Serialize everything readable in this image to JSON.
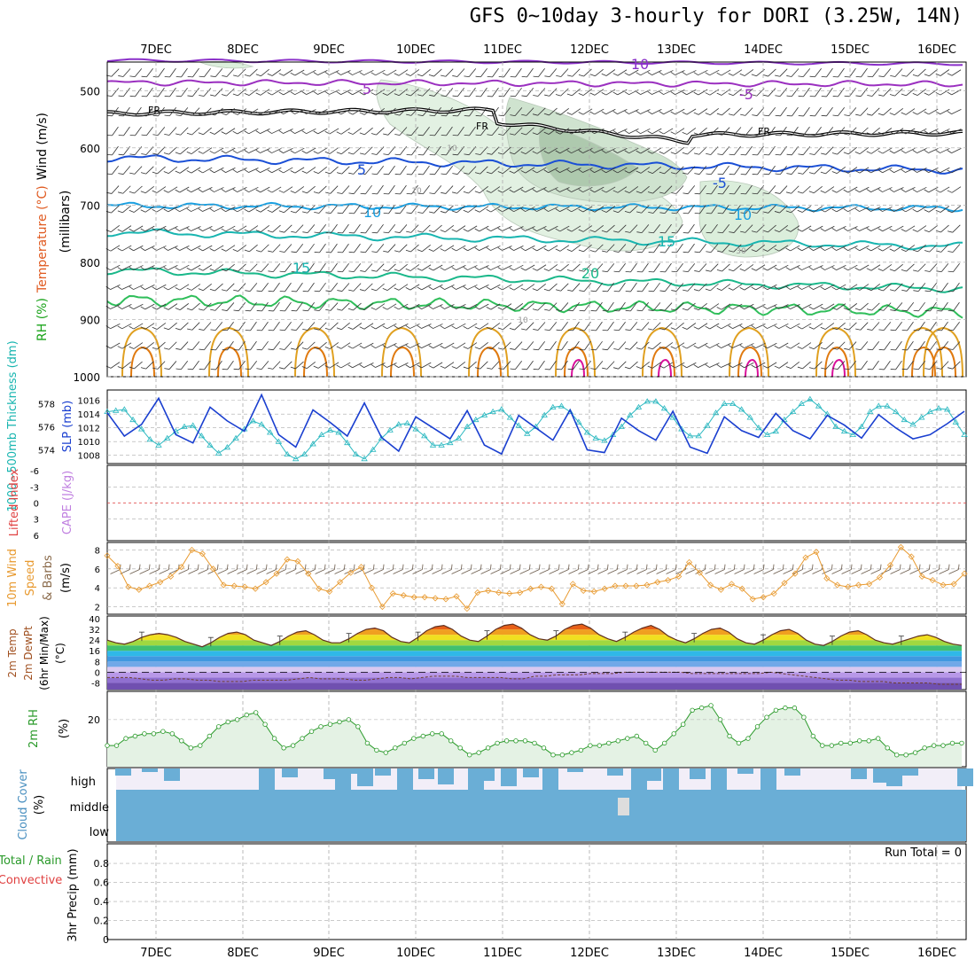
{
  "title": "GFS 0~10day 3-hourly for DORI (3.25W, 14N)",
  "x_axis": {
    "date_labels": [
      "7DEC",
      "8DEC",
      "9DEC",
      "10DEC",
      "11DEC",
      "12DEC",
      "13DEC",
      "14DEC",
      "15DEC",
      "16DEC"
    ]
  },
  "panels": {
    "upper": {
      "ylabel_parts": [
        "RH (%)",
        "Temperature (°C)",
        "Wind (m/s)",
        "(millibars)"
      ],
      "yticks": [
        500,
        600,
        700,
        800,
        900,
        1000
      ],
      "contour_labels": [
        "10",
        "5",
        "-5",
        "FR",
        "FR",
        "FR",
        "5",
        "-5",
        "10",
        "10",
        "15",
        "15",
        "20"
      ],
      "rh_labels": [
        "10",
        "10",
        "30",
        "10"
      ],
      "colors": {
        "t_minus10": "#8a2fc9",
        "t_minus5": "#9b30c0",
        "fr": "#000000",
        "t5": "#1a4fd6",
        "t10": "#1a9fe0",
        "t15": "#18b5b0",
        "t20": "#1ab88a",
        "t25": "#2fbe5a",
        "t30": "#e0a020",
        "t35": "#e07a10",
        "t40": "#d8109a",
        "rh": "#cfe9cf"
      }
    },
    "pressure": {
      "ylabel_left": "1000~500mb Thickness (dm)",
      "ylabel_right": "SLP (mb)",
      "left_ticks": [
        "578",
        "576",
        "574"
      ],
      "right_ticks": [
        "1016",
        "1014",
        "1012",
        "1010",
        "1008"
      ]
    },
    "stability": {
      "ylabel_left": "Lifted Index",
      "ylabel_right": "CAPE (J/kg)",
      "ticks": [
        "-6",
        "-3",
        "0",
        "3",
        "6"
      ]
    },
    "wind10": {
      "ylabel": [
        "10m Wind",
        "Speed",
        "& Barbs",
        "(m/s)"
      ],
      "ticks": [
        "8",
        "6",
        "4",
        "2"
      ]
    },
    "temp2m": {
      "ylabel": [
        "2m Temp",
        "2m DewPt",
        "(6hr Min/Max)",
        "(°C)"
      ],
      "ticks": [
        "40",
        "32",
        "24",
        "16",
        "8",
        "0",
        "-8"
      ]
    },
    "rh2m": {
      "ylabel": [
        "2m RH",
        "(%)"
      ],
      "ticks": [
        "20"
      ]
    },
    "cloud": {
      "ylabel": [
        "Cloud Cover",
        "(%)"
      ],
      "level_labels": [
        "high",
        "middle",
        "low"
      ],
      "color": "#6aaed6"
    },
    "precip": {
      "ylabel": [
        "Total / Rain",
        "Convective",
        "3hr Precip (mm)"
      ],
      "ticks": [
        "0.8",
        "0.6",
        "0.4",
        "0.2",
        "0"
      ],
      "run_total": "Run Total = 0"
    }
  },
  "chart_data": {
    "type": "line",
    "x_dates": [
      "7DEC",
      "8DEC",
      "9DEC",
      "10DEC",
      "11DEC",
      "12DEC",
      "13DEC",
      "14DEC",
      "15DEC",
      "16DEC"
    ],
    "slp_mb": [
      1014.2,
      1010.8,
      1012.5,
      1016.3,
      1011.0,
      1009.8,
      1015.0,
      1013.0,
      1011.5,
      1016.8,
      1011.0,
      1009.2,
      1014.6,
      1012.8,
      1010.8,
      1015.6,
      1010.6,
      1008.6,
      1013.6,
      1012.0,
      1010.4,
      1014.5,
      1009.5,
      1008.2,
      1013.8,
      1012.0,
      1010.2,
      1014.6,
      1008.8,
      1008.4,
      1013.4,
      1011.6,
      1010.2,
      1014.4,
      1009.2,
      1008.3,
      1013.6,
      1011.6,
      1010.6,
      1014.1,
      1011.6,
      1010.4,
      1013.8,
      1012.4,
      1010.5,
      1013.9,
      1012.0,
      1010.4,
      1011.0,
      1012.6,
      1014.4
    ],
    "thickness_dm": [
      577.3,
      577.4,
      577.5,
      576.6,
      575.8,
      574.9,
      574.4,
      575.0,
      575.6,
      576.0,
      576.1,
      575.2,
      574.4,
      573.7,
      574.2,
      575.0,
      575.8,
      576.5,
      576.2,
      575.5,
      574.7,
      573.6,
      573.2,
      573.6,
      574.5,
      575.3,
      575.7,
      575.5,
      574.6,
      573.6,
      573.2,
      574.0,
      575.0,
      575.7,
      576.2,
      576.3,
      575.8,
      575.2,
      574.4,
      574.4,
      574.6,
      575.0,
      576.0,
      576.6,
      577.0,
      577.3,
      577.5,
      576.8,
      576.1,
      575.4,
      576.0,
      577.0,
      577.7,
      577.8,
      577.3,
      576.4,
      575.5,
      575.0,
      574.8,
      575.3,
      576.0,
      577.0,
      577.7,
      578.2,
      578.2,
      577.6,
      576.8,
      575.8,
      575.2,
      575.2,
      576.1,
      577.2,
      578.0,
      578.0,
      577.5,
      576.8,
      575.9,
      575.3,
      575.6,
      576.6,
      577.3,
      578.0,
      578.4,
      577.8,
      577.1,
      576.0,
      575.6,
      575.3,
      576.0,
      577.3,
      577.8,
      577.8,
      577.3,
      576.6,
      576.2,
      576.8,
      577.3,
      577.6,
      577.5,
      576.4,
      575.3
    ],
    "wind10_ms": [
      7.4,
      6.3,
      4.1,
      3.8,
      4.2,
      4.6,
      5.2,
      6.2,
      8.0,
      7.6,
      6.0,
      4.3,
      4.2,
      4.1,
      3.9,
      4.6,
      5.5,
      7.0,
      6.8,
      5.5,
      3.9,
      3.6,
      4.6,
      5.6,
      6.2,
      4.0,
      2.0,
      3.4,
      3.2,
      3.0,
      3.0,
      2.9,
      2.8,
      3.1,
      1.8,
      3.5,
      3.7,
      3.5,
      3.4,
      3.5,
      3.9,
      4.1,
      3.9,
      2.3,
      4.4,
      3.7,
      3.6,
      3.9,
      4.2,
      4.2,
      4.2,
      4.3,
      4.6,
      4.8,
      5.2,
      6.7,
      5.6,
      4.3,
      3.8,
      4.4,
      3.9,
      2.8,
      3.0,
      3.4,
      4.5,
      5.5,
      7.2,
      7.8,
      5.0,
      4.3,
      4.1,
      4.3,
      4.4,
      5.1,
      6.4,
      8.3,
      7.3,
      5.2,
      4.8,
      4.3,
      4.4,
      5.5
    ],
    "temp2m_c": [
      24,
      22,
      21,
      23,
      26,
      28,
      29,
      28,
      26,
      23,
      21,
      19,
      22,
      26,
      29,
      30,
      28,
      24,
      22,
      20,
      23,
      27,
      30,
      31,
      28,
      24,
      22,
      22,
      25,
      29,
      32,
      33,
      31,
      26,
      23,
      22,
      26,
      31,
      34,
      35,
      32,
      27,
      24,
      23,
      27,
      32,
      35,
      36,
      33,
      28,
      25,
      24,
      27,
      32,
      35,
      36,
      33,
      28,
      25,
      23,
      26,
      30,
      33,
      35,
      32,
      27,
      24,
      22,
      25,
      29,
      32,
      33,
      30,
      25,
      22,
      21,
      24,
      28,
      31,
      32,
      29,
      24,
      21,
      20,
      23,
      27,
      30,
      31,
      28,
      24,
      22,
      21,
      23,
      25,
      27,
      28,
      26,
      23,
      21,
      20
    ],
    "dewpt2m_c": [
      -4,
      -4,
      -4,
      -5,
      -6,
      -6,
      -5,
      -5,
      -6,
      -6,
      -7,
      -7,
      -7,
      -6,
      -6,
      -6,
      -6,
      -5,
      -4,
      -5,
      -5,
      -5,
      -6,
      -6,
      -5,
      -4,
      -4,
      -5,
      -4,
      -3,
      -3,
      -3,
      -4,
      -4,
      -4,
      -4,
      -5,
      -5,
      -3,
      -3,
      -2,
      -2,
      -2,
      -1,
      -1,
      -1,
      0,
      0,
      0,
      0,
      0,
      0,
      -1,
      -1,
      -1,
      -1,
      -1,
      -1,
      -1,
      0,
      -1,
      -2,
      -3,
      -4,
      -5,
      -6,
      -6,
      -7,
      -7,
      -7,
      -8,
      -8,
      -8,
      -8,
      -9,
      -9,
      -9
    ],
    "rh2m_pct": [
      9,
      9,
      12,
      13,
      14,
      14,
      15,
      14,
      11,
      8,
      9,
      13,
      17,
      19,
      20,
      22,
      23,
      18,
      12,
      8,
      9,
      12,
      15,
      17,
      18,
      19,
      20,
      17,
      10,
      7,
      6,
      8,
      10,
      12,
      13,
      14,
      14,
      11,
      8,
      5,
      6,
      8,
      10,
      11,
      11,
      11,
      10,
      8,
      5,
      5,
      6,
      7,
      9,
      9,
      10,
      11,
      12,
      13,
      10,
      7,
      10,
      14,
      18,
      24,
      25,
      26,
      20,
      13,
      10,
      12,
      17,
      21,
      24,
      25,
      25,
      21,
      13,
      9,
      9,
      10,
      10,
      11,
      11,
      12,
      8,
      5,
      5,
      6,
      8,
      9,
      9,
      10,
      10
    ],
    "precip_run_total_mm": 0
  }
}
